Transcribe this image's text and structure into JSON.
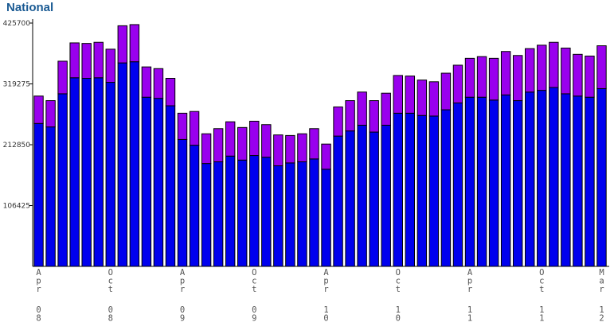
{
  "title": "National",
  "chart_data": {
    "type": "bar",
    "stacked": true,
    "ylim": [
      0,
      425700
    ],
    "yticks": [
      "425700",
      "319275",
      "212850",
      "106425"
    ],
    "ytick_values": [
      425700,
      319275,
      212850,
      106425
    ],
    "grid": false,
    "legend": "none",
    "colors": {
      "lower": "#0000ee",
      "upper": "#9900ee",
      "outline": "#000000"
    },
    "x_labels": [
      {
        "index": 0,
        "lines": [
          "Apr",
          "08"
        ]
      },
      {
        "index": 6,
        "lines": [
          "Oct",
          "08"
        ]
      },
      {
        "index": 12,
        "lines": [
          "Apr",
          "09"
        ]
      },
      {
        "index": 18,
        "lines": [
          "Oct",
          "09"
        ]
      },
      {
        "index": 24,
        "lines": [
          "Apr",
          "10"
        ]
      },
      {
        "index": 30,
        "lines": [
          "Oct",
          "10"
        ]
      },
      {
        "index": 36,
        "lines": [
          "Apr",
          "11"
        ]
      },
      {
        "index": 42,
        "lines": [
          "Oct",
          "11"
        ]
      },
      {
        "index": 47,
        "lines": [
          "Mar",
          "12"
        ]
      }
    ],
    "series": [
      {
        "values": [
          250000,
          244000,
          302000,
          330000,
          329000,
          330000,
          322000,
          356000,
          358000,
          296000,
          294000,
          281000,
          222000,
          212000,
          180000,
          183000,
          193000,
          186000,
          194000,
          191000,
          176000,
          181000,
          183000,
          188000,
          170000,
          228000,
          237000,
          247000,
          235000,
          247000,
          268000,
          268000,
          264000,
          263000,
          274000,
          286000,
          296000,
          296000,
          291000,
          300000,
          290000,
          305000,
          308000,
          313000,
          302000,
          298000,
          296000,
          311000
        ]
      },
      {
        "values": [
          48000,
          46000,
          57000,
          61000,
          61000,
          62000,
          58000,
          65000,
          65000,
          53000,
          52000,
          48000,
          46000,
          59000,
          52000,
          58000,
          60000,
          57000,
          60000,
          57000,
          54000,
          48000,
          49000,
          53000,
          44000,
          51000,
          53000,
          58000,
          55000,
          56000,
          66000,
          65000,
          62000,
          60000,
          64000,
          66000,
          68000,
          71000,
          73000,
          76000,
          79000,
          76000,
          79000,
          79000,
          80000,
          73000,
          72000,
          75000
        ]
      }
    ]
  }
}
